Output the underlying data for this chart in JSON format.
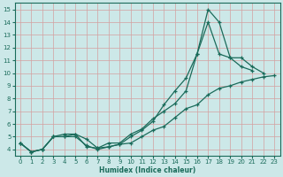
{
  "xlabel": "Humidex (Indice chaleur)",
  "bg_color": "#cce8e8",
  "line_color": "#1a6b5a",
  "grid_color": "#d4a0a0",
  "xlim": [
    -0.5,
    23.5
  ],
  "ylim": [
    3.5,
    15.5
  ],
  "xticks": [
    0,
    1,
    2,
    3,
    4,
    5,
    6,
    7,
    8,
    9,
    10,
    11,
    12,
    13,
    14,
    15,
    16,
    17,
    18,
    19,
    20,
    21,
    22,
    23
  ],
  "yticks": [
    4,
    5,
    6,
    7,
    8,
    9,
    10,
    11,
    12,
    13,
    14,
    15
  ],
  "line1_x": [
    0,
    1,
    2,
    3,
    4,
    5,
    6,
    7,
    8,
    9,
    10,
    11,
    12,
    13,
    14,
    15,
    16,
    17,
    18,
    19,
    20,
    21
  ],
  "line1_y": [
    4.5,
    3.8,
    4.0,
    5.0,
    5.0,
    5.2,
    4.8,
    4.1,
    4.2,
    4.4,
    5.0,
    5.5,
    6.2,
    7.5,
    8.6,
    9.6,
    11.5,
    15.0,
    14.0,
    11.2,
    10.5,
    10.2
  ],
  "line2_x": [
    0,
    1,
    2,
    3,
    4,
    5,
    6,
    7,
    8,
    9,
    10,
    11,
    12,
    13,
    14,
    15,
    16,
    17,
    18,
    19,
    20,
    21,
    22
  ],
  "line2_y": [
    4.5,
    3.8,
    4.0,
    5.0,
    5.2,
    5.2,
    4.2,
    4.1,
    4.5,
    4.5,
    5.2,
    5.6,
    6.4,
    7.0,
    7.6,
    8.6,
    11.5,
    14.0,
    11.5,
    11.2,
    11.2,
    10.5,
    10.0
  ],
  "line3_x": [
    0,
    1,
    2,
    3,
    4,
    5,
    6,
    7,
    8,
    9,
    10,
    11,
    12,
    13,
    14,
    15,
    16,
    17,
    18,
    19,
    20,
    21,
    22,
    23
  ],
  "line3_y": [
    4.5,
    3.8,
    4.0,
    5.0,
    5.0,
    5.0,
    4.3,
    4.0,
    4.2,
    4.4,
    4.5,
    5.0,
    5.5,
    5.8,
    6.5,
    7.2,
    7.5,
    8.3,
    8.8,
    9.0,
    9.3,
    9.5,
    9.7,
    9.8
  ]
}
